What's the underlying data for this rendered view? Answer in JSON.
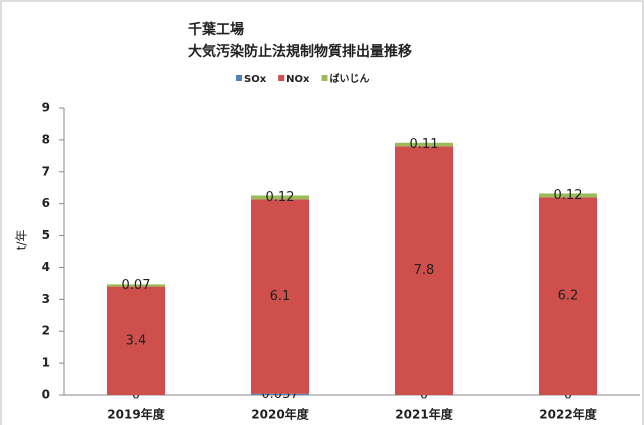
{
  "chart_data": {
    "type": "stacked_bar",
    "title": "千葉工場",
    "subtitle": "大気汚染防止法規制物質排出量推移",
    "ylabel": "t/年",
    "categories": [
      "2019年度",
      "2020年度",
      "2021年度",
      "2022年度"
    ],
    "series": [
      {
        "name": "SOx",
        "color": "#4f81bd",
        "values": [
          0,
          0.037,
          0,
          0
        ]
      },
      {
        "name": "NOx",
        "color": "#cf4f4c",
        "values": [
          3.4,
          6.1,
          7.8,
          6.2
        ]
      },
      {
        "name": "ばいじん",
        "color": "#9bbb59",
        "values": [
          0.07,
          0.12,
          0.11,
          0.12
        ]
      }
    ],
    "ylim": [
      0,
      9
    ],
    "yticks": [
      0,
      1,
      2,
      3,
      4,
      5,
      6,
      7,
      8,
      9
    ],
    "legend": "top",
    "grid": false
  }
}
